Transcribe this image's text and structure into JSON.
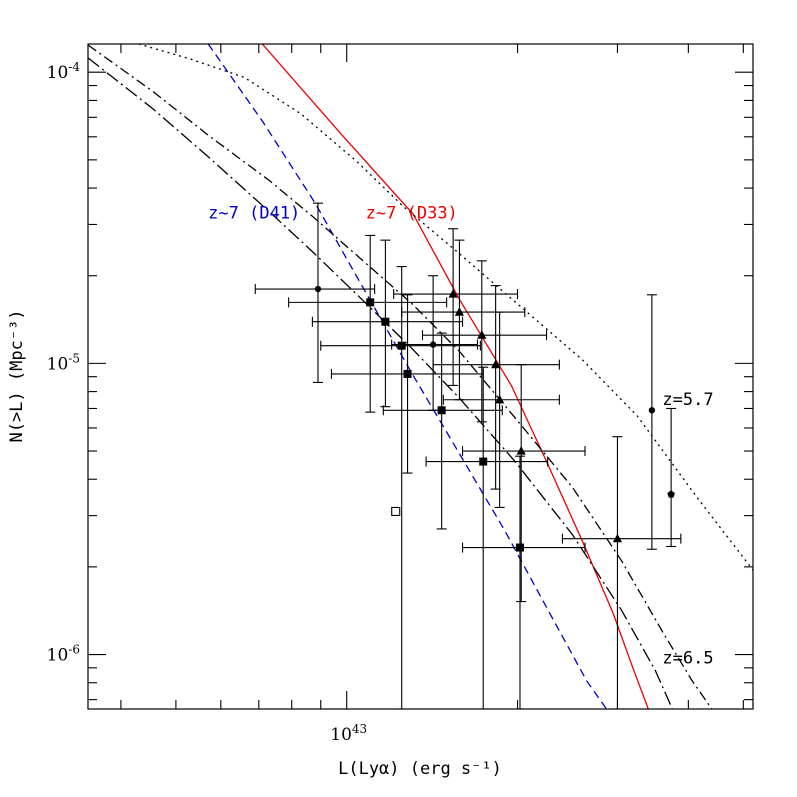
{
  "chart_data": {
    "type": "scatter",
    "xlabel": "L(Lyα) (erg s⁻¹)",
    "ylabel": "N(>L) (Mpc⁻³)",
    "x_scale": "log",
    "y_scale": "log",
    "xlim": [
      3.5e+42,
      5.2e+43
    ],
    "ylim": [
      6.5e-07,
      0.000125
    ],
    "x_tick_labels": [
      {
        "value": 1e+43,
        "mant": "10",
        "exp": "43"
      }
    ],
    "y_tick_labels": [
      {
        "value": 0.0001,
        "mant": "10",
        "exp": "-4"
      },
      {
        "value": 1e-05,
        "mant": "10",
        "exp": "-5"
      },
      {
        "value": 1e-06,
        "mant": "10",
        "exp": "-6"
      }
    ],
    "annotations": [
      {
        "text": "z~7 (D41)",
        "color": "#0000cc",
        "x": 5.7e+42,
        "y": 3.15e-05
      },
      {
        "text": "z~7 (D33)",
        "color": "#ee0000",
        "x": 1.08e+43,
        "y": 3.15e-05
      },
      {
        "text": "z=5.7",
        "color": "#000000",
        "x": 3.6e+43,
        "y": 7.2e-06
      },
      {
        "text": "z=6.5",
        "color": "#000000",
        "x": 3.6e+43,
        "y": 9.3e-07
      }
    ],
    "curves": [
      {
        "name": "z~7 (D33)",
        "color": "#ee0000",
        "dash": "",
        "points": [
          [
            7.1e+42,
            0.000125
          ],
          [
            9.8e+42,
            6.1e-05
          ],
          [
            1.31e+43,
            3.25e-05
          ],
          [
            1.58e+43,
            1.66e-05
          ],
          [
            1.95e+43,
            8.4e-06
          ],
          [
            2.25e+43,
            4.6e-06
          ],
          [
            2.6e+43,
            2.46e-06
          ],
          [
            2.95e+43,
            1.38e-06
          ],
          [
            3.2e+43,
            8.9e-07
          ],
          [
            3.4e+43,
            6.5e-07
          ]
        ]
      },
      {
        "name": "z~7 (D41)",
        "color": "#0000cc",
        "dash": "8,5",
        "points": [
          [
            5.7e+42,
            0.000125
          ],
          [
            7.1e+42,
            6.8e-05
          ],
          [
            8.8e+42,
            3.55e-05
          ],
          [
            1.06e+43,
            1.87e-05
          ],
          [
            1.3e+43,
            9.3e-06
          ],
          [
            1.58e+43,
            4.9e-06
          ],
          [
            1.9e+43,
            2.66e-06
          ],
          [
            2.25e+43,
            1.45e-06
          ],
          [
            2.65e+43,
            8.1e-07
          ],
          [
            2.87e+43,
            6.5e-07
          ]
        ]
      },
      {
        "name": "z=5.7",
        "color": "#000000",
        "dash": "2,4",
        "points": [
          [
            4.3e+42,
            0.000125
          ],
          [
            5.3e+42,
            0.000111
          ],
          [
            6.6e+42,
            9.6e-05
          ],
          [
            8.3e+42,
            7.2e-05
          ],
          [
            1.04e+43,
            4.95e-05
          ],
          [
            1.26e+43,
            3.45e-05
          ],
          [
            1.58e+43,
            2.38e-05
          ],
          [
            2e+43,
            1.6e-05
          ],
          [
            2.6e+43,
            1.03e-05
          ],
          [
            3.25e+43,
            6.6e-06
          ],
          [
            4.15e+43,
            3.45e-06
          ],
          [
            5.2e+43,
            1.95e-06
          ]
        ]
      },
      {
        "name": "z=6.5 (a)",
        "color": "#000000",
        "dash": "10,4,2,4",
        "points": [
          [
            3.5e+42,
            0.000124
          ],
          [
            4.55e+42,
            8.6e-05
          ],
          [
            5.75e+42,
            6e-05
          ],
          [
            7.3e+42,
            4.25e-05
          ],
          [
            8.7e+42,
            3.2e-05
          ],
          [
            1.05e+43,
            2.32e-05
          ],
          [
            1.3e+43,
            1.61e-05
          ],
          [
            1.58e+43,
            1.1e-05
          ],
          [
            1.98e+43,
            6.5e-06
          ],
          [
            2.5e+43,
            3.75e-06
          ],
          [
            3.05e+43,
            2.1e-06
          ],
          [
            3.6e+43,
            1.2e-06
          ],
          [
            4.05e+43,
            8.2e-07
          ],
          [
            4.4e+43,
            6.5e-07
          ]
        ]
      },
      {
        "name": "z=6.5 (b)",
        "color": "#000000",
        "dash": "14,4,2,4",
        "points": [
          [
            3.5e+42,
            0.000112
          ],
          [
            4.55e+42,
            7.5e-05
          ],
          [
            5.75e+42,
            5.05e-05
          ],
          [
            7.3e+42,
            3.32e-05
          ],
          [
            8.7e+42,
            2.42e-05
          ],
          [
            1.05e+43,
            1.7e-05
          ],
          [
            1.3e+43,
            1.13e-05
          ],
          [
            1.58e+43,
            7.6e-06
          ],
          [
            1.98e+43,
            4.6e-06
          ],
          [
            2.5e+43,
            2.58e-06
          ],
          [
            3.05e+43,
            1.42e-06
          ],
          [
            3.5e+43,
            8.8e-07
          ],
          [
            3.75e+43,
            6.5e-07
          ]
        ]
      }
    ],
    "points": [
      {
        "marker": "circle",
        "x": 8.9e+42,
        "y": 1.8e-05,
        "xerr": [
          6.9e+42,
          1.12e+43
        ],
        "yerr": [
          8.6e-06,
          3.55e-05
        ]
      },
      {
        "marker": "square",
        "x": 1.1e+43,
        "y": 1.62e-05,
        "xerr": [
          7.9e+42,
          1.5e+43
        ],
        "yerr": [
          6.8e-06,
          2.75e-05
        ]
      },
      {
        "marker": "square",
        "x": 1.17e+43,
        "y": 1.39e-05,
        "xerr": [
          8.7e+42,
          1.6e+43
        ],
        "yerr": [
          7.1e-06,
          2.65e-05
        ]
      },
      {
        "marker": "square",
        "x": 1.25e+43,
        "y": 1.15e-05,
        "xerr": [
          9e+42,
          1.72e+43
        ],
        "yerr": [
          6.5e-07,
          2.15e-05
        ]
      },
      {
        "marker": "square",
        "x": 1.28e+43,
        "y": 9.2e-06,
        "xerr": [
          9.4e+42,
          1.74e+43
        ],
        "yerr": [
          4.2e-06,
          1.72e-05
        ]
      },
      {
        "marker": "circle",
        "x": 1.42e+43,
        "y": 1.16e-05,
        "xerr": [
          1.2e+43,
          1.7e+43
        ],
        "yerr": [
          6.9e-06,
          2e-05
        ]
      },
      {
        "marker": "square",
        "x": 1.47e+43,
        "y": 6.9e-06,
        "xerr": [
          1.16e+43,
          1.88e+43
        ],
        "yerr": [
          2.7e-06,
          1.27e-05
        ]
      },
      {
        "marker": "triangle",
        "x": 1.54e+43,
        "y": 1.73e-05,
        "xerr": [
          1.21e+43,
          2e+43
        ],
        "yerr": [
          8.4e-06,
          2.9e-05
        ]
      },
      {
        "marker": "triangle",
        "x": 1.58e+43,
        "y": 1.5e-05,
        "xerr": [
          1.25e+43,
          2.06e+43
        ],
        "yerr": [
          7.5e-06,
          2.65e-05
        ]
      },
      {
        "marker": "triangle",
        "x": 1.73e+43,
        "y": 1.25e-05,
        "xerr": [
          1.36e+43,
          2.25e+43
        ],
        "yerr": [
          6.3e-06,
          2.25e-05
        ]
      },
      {
        "marker": "triangle",
        "x": 1.83e+43,
        "y": 9.9e-06,
        "xerr": [
          1.42e+43,
          2.37e+43
        ],
        "yerr": [
          3.7e-06,
          1.85e-05
        ]
      },
      {
        "marker": "triangle",
        "x": 1.86e+43,
        "y": 7.5e-06,
        "xerr": [
          1.48e+43,
          2.37e+43
        ],
        "yerr": [
          3.2e-06,
          1.5e-05
        ]
      },
      {
        "marker": "square",
        "x": 1.74e+43,
        "y": 4.6e-06,
        "xerr": [
          1.38e+43,
          2.26e+43
        ],
        "yerr": [
          6.5e-07,
          9.7e-06
        ]
      },
      {
        "marker": "triangle",
        "x": 2.03e+43,
        "y": 5e-06,
        "xerr": [
          1.6e+43,
          2.63e+43
        ],
        "yerr": [
          1.52e-06,
          9.9e-06
        ]
      },
      {
        "marker": "square",
        "x": 2.02e+43,
        "y": 2.33e-06,
        "xerr": [
          1.6e+43,
          2.63e+43
        ],
        "yerr": [
          6.5e-07,
          4.8e-06
        ]
      },
      {
        "marker": "triangle",
        "x": 3e+43,
        "y": 2.5e-06,
        "xerr": [
          2.4e+43,
          3.88e+43
        ],
        "yerr": [
          6.5e-07,
          5.6e-06
        ]
      },
      {
        "marker": "circle",
        "x": 3.45e+43,
        "y": 6.9e-06,
        "xerr": null,
        "yerr": [
          2.3e-06,
          1.72e-05
        ]
      },
      {
        "marker": "pentagon",
        "x": 3.73e+43,
        "y": 3.55e-06,
        "xerr": null,
        "yerr": [
          2.35e-06,
          7e-06
        ]
      },
      {
        "marker": "open-square",
        "x": 1.22e+43,
        "y": 3.1e-06,
        "xerr": null,
        "yerr": null
      }
    ]
  }
}
